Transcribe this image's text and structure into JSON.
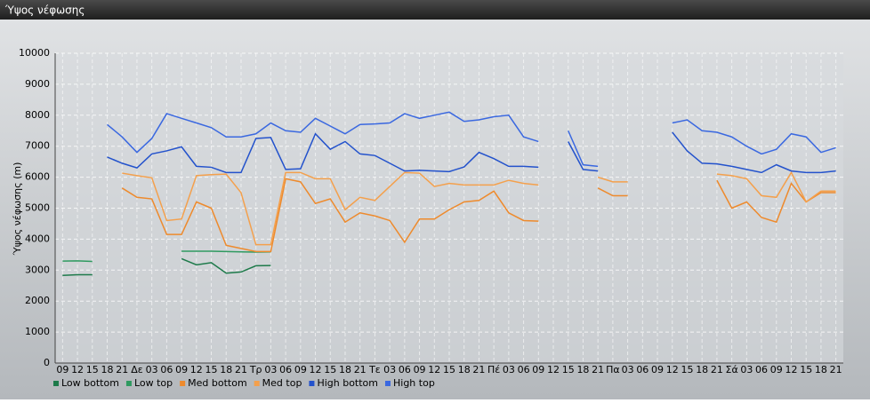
{
  "chart_data": {
    "type": "line",
    "title": "Ύψος νέφωσης",
    "y_label": "Ύψος νέφωσης (m)",
    "categories": [
      "09",
      "12",
      "15",
      "18",
      "21",
      "Δε",
      "03",
      "06",
      "09",
      "12",
      "15",
      "18",
      "21",
      "Τρ",
      "03",
      "06",
      "09",
      "12",
      "15",
      "18",
      "21",
      "Τε",
      "03",
      "06",
      "09",
      "12",
      "15",
      "18",
      "21",
      "Πέ",
      "03",
      "06",
      "09",
      "12",
      "15",
      "18",
      "21",
      "Πα",
      "03",
      "06",
      "09",
      "12",
      "15",
      "18",
      "21",
      "Σά",
      "03",
      "06",
      "09",
      "12",
      "15",
      "18",
      "21"
    ],
    "ylim": [
      0,
      10000
    ],
    "yticks": [
      0,
      1000,
      2000,
      3000,
      4000,
      5000,
      6000,
      7000,
      8000,
      9000,
      10000
    ],
    "grid": true,
    "series": [
      {
        "name": "Low bottom",
        "color": "#1d7a4a",
        "values": [
          2830,
          2850,
          2850,
          null,
          null,
          null,
          null,
          null,
          3370,
          3170,
          3240,
          2900,
          2940,
          3140,
          3150,
          null,
          null,
          null,
          null,
          null,
          null,
          null,
          null,
          null,
          null,
          null,
          null,
          null,
          null,
          null,
          null,
          null,
          null,
          null,
          null,
          null,
          null,
          null,
          null,
          null,
          null,
          null,
          null,
          null,
          null,
          null,
          null,
          null,
          null,
          null,
          null,
          null,
          null
        ]
      },
      {
        "name": "Low top",
        "color": "#2f9a60",
        "values": [
          3290,
          3300,
          3280,
          null,
          null,
          null,
          null,
          null,
          3610,
          3610,
          3610,
          3600,
          3590,
          3580,
          3590,
          null,
          null,
          null,
          null,
          null,
          null,
          null,
          null,
          null,
          null,
          null,
          null,
          null,
          null,
          null,
          null,
          null,
          null,
          null,
          null,
          null,
          null,
          null,
          null,
          null,
          null,
          null,
          null,
          null,
          null,
          null,
          null,
          null,
          null,
          null,
          null,
          null,
          null
        ]
      },
      {
        "name": "Med bottom",
        "color": "#ee8a2c",
        "values": [
          null,
          null,
          null,
          null,
          5650,
          5350,
          5300,
          4150,
          4150,
          5200,
          5000,
          3800,
          3700,
          3600,
          3600,
          5950,
          5850,
          5150,
          5300,
          4550,
          4850,
          4750,
          4600,
          3900,
          4650,
          4650,
          4950,
          5200,
          5250,
          5550,
          4850,
          4600,
          4580,
          null,
          null,
          null,
          5650,
          5400,
          5400,
          null,
          null,
          null,
          null,
          null,
          5900,
          5000,
          5200,
          4700,
          4550,
          5800,
          5200,
          5500,
          5500
        ]
      },
      {
        "name": "Med top",
        "color": "#f4a04c",
        "values": [
          null,
          null,
          null,
          null,
          6130,
          6050,
          5980,
          4600,
          4650,
          6050,
          6080,
          6100,
          5500,
          3820,
          3820,
          6150,
          6150,
          5950,
          5950,
          4950,
          5350,
          5250,
          5700,
          6150,
          6130,
          5700,
          5800,
          5750,
          5750,
          5750,
          5900,
          5800,
          5750,
          null,
          null,
          null,
          6000,
          5850,
          5850,
          null,
          null,
          null,
          null,
          null,
          6100,
          6050,
          5950,
          5400,
          5350,
          6150,
          5200,
          5550,
          5550
        ]
      },
      {
        "name": "High bottom",
        "color": "#2352cc",
        "values": [
          null,
          null,
          null,
          6650,
          6450,
          6300,
          6750,
          6850,
          6980,
          6350,
          6320,
          6150,
          6150,
          7250,
          7280,
          6250,
          6270,
          7400,
          6900,
          7150,
          6750,
          6700,
          6450,
          6200,
          6220,
          6200,
          6180,
          6330,
          6800,
          6600,
          6350,
          6350,
          6320,
          null,
          7150,
          6250,
          6200,
          null,
          null,
          null,
          null,
          7450,
          6850,
          6450,
          6430,
          6350,
          6250,
          6150,
          6400,
          6200,
          6150,
          6150,
          6200
        ]
      },
      {
        "name": "High top",
        "color": "#3a68e0",
        "values": [
          null,
          null,
          null,
          7700,
          7300,
          6800,
          7250,
          8050,
          7900,
          7750,
          7600,
          7300,
          7300,
          7400,
          7750,
          7500,
          7450,
          7900,
          7650,
          7400,
          7700,
          7720,
          7750,
          8050,
          7900,
          8000,
          8100,
          7800,
          7850,
          7950,
          8000,
          7300,
          7150,
          null,
          7500,
          6400,
          6350,
          null,
          null,
          null,
          null,
          7750,
          7850,
          7500,
          7450,
          7300,
          7000,
          6750,
          6900,
          7400,
          7300,
          6800,
          6950
        ]
      }
    ]
  }
}
